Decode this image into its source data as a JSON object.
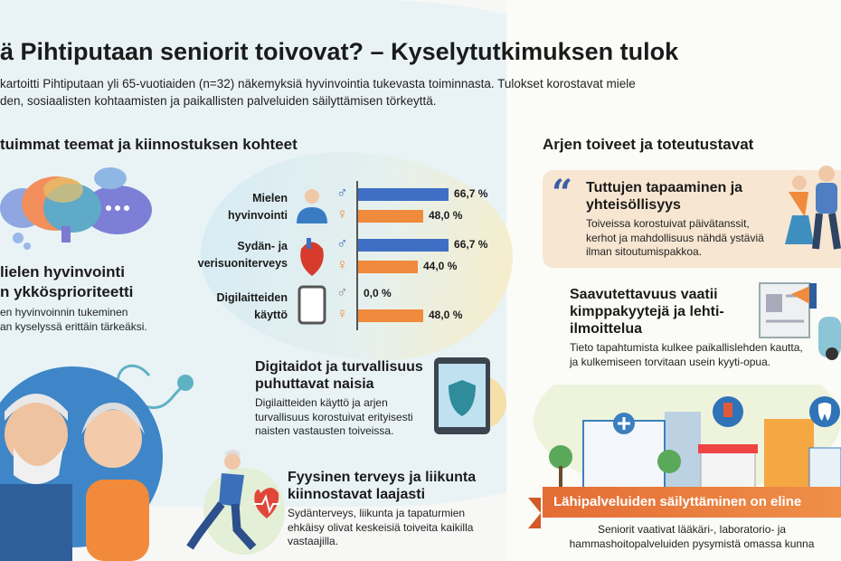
{
  "header": {
    "title": "ä Pihtiputaan seniorit toivovat? – Kyselytutkimuksen tulok",
    "subtitle_line1": "kartoitti Pihtiputaan yli 65-vuotiaiden (n=32) näkemyksiä hyvinvointia tukevasta toiminnasta. Tulokset korostavat miele",
    "subtitle_line2": "den, sosiaalisten kohtaamisten ja paikallisten palveluiden säilyttämisen törkeyttä."
  },
  "left": {
    "heading": "tuimmat teemat ja kiinnostuksen kohteet",
    "mental": {
      "title_line1": "lielen hyvinvointi",
      "title_line2": "n ykkösprioriteetti",
      "body_line1": "en hyvinvoinnin tukeminen",
      "body_line2": "an kyselyssä erittäin tärkeäksi."
    },
    "digital": {
      "title": "Digitaidot ja turvallisuus puhuttavat naisia",
      "body": "Digilaitteiden käyttö ja arjen turvallisuus korostuivat erityisesti naisten vastausten toiveissa."
    },
    "physical": {
      "title": "Fyysinen terveys ja liikunta kiinnostavat laajasti",
      "body": "Sydänterveys, liikunta ja tapaturmien ehkäisy olivat keskeisiä toiveita kaikilla vastaajilla."
    }
  },
  "chart_data": {
    "type": "bar",
    "orientation": "horizontal",
    "categories": [
      [
        "Mielen",
        "hyvinvointi"
      ],
      [
        "Sydän- ja",
        "verisuoniterveys"
      ],
      [
        "Digilaitteiden",
        "käyttö"
      ]
    ],
    "series": [
      {
        "name": "♂",
        "values": [
          66.7,
          66.7,
          0.0
        ],
        "labels": [
          "66,7 %",
          "66,7 %",
          "0,0 %"
        ],
        "color": "#3f6fc4"
      },
      {
        "name": "♀",
        "values": [
          48.0,
          44.0,
          48.0
        ],
        "labels": [
          "48,0 %",
          "44,0 %",
          "48,0 %"
        ],
        "color": "#f08a3c"
      }
    ],
    "xlim": [
      0,
      100
    ],
    "grid": false
  },
  "right": {
    "heading": "Arjen toiveet ja toteutustavat",
    "community": {
      "title": "Tuttujen tapaaminen ja yhteisöllisyys",
      "body": "Toiveissa korostuivat päivätanssit, kerhot ja mahdollisuus nähdä ystäviä ilman sitoutumispakkoa."
    },
    "access": {
      "title": "Saavutettavuus vaatii kimppakyytejä ja lehti-ilmoittelua",
      "body": "Tieto tapahtumista kulkee paikallislehden kautta, ja kulkemiseen torvitaan usein kyyti-opua."
    },
    "services": {
      "banner": "Lähipalveluiden säilyttäminen on eline",
      "body_line1": "Seniorit vaativat lääkäri-, laboratorio- ja",
      "body_line2": "hammashoitopalveluiden pysymistä omassa kunna"
    }
  },
  "colors": {
    "male": "#3f6fc4",
    "female": "#f08a3c",
    "banner": "#e8743a",
    "card": "#f7e6d1",
    "quote": "#3b5fa8"
  }
}
